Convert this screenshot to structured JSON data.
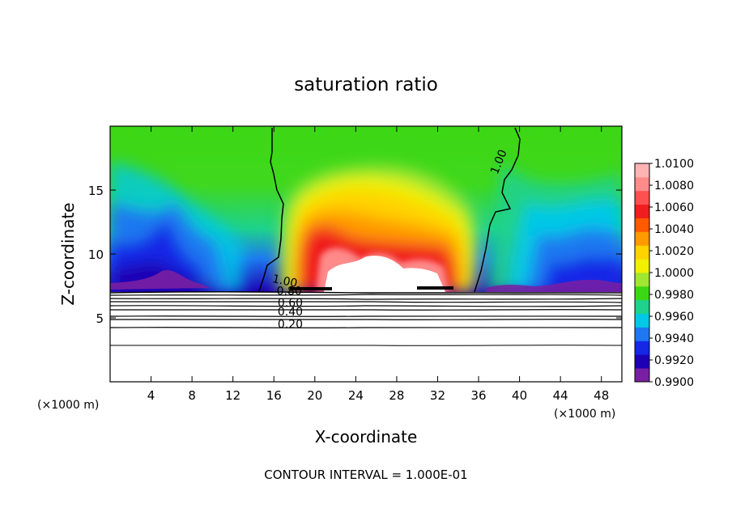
{
  "chart_data": {
    "type": "heatmap",
    "title": "saturation ratio",
    "xlabel": "X-coordinate",
    "ylabel": "Z-coordinate",
    "x_unit_left": "(×1000 m)",
    "x_unit_right": "(×1000 m)",
    "footer": "CONTOUR INTERVAL = 1.000E-01",
    "xlim": [
      0,
      50
    ],
    "ylim": [
      0,
      20
    ],
    "x_ticks": [
      4,
      8,
      12,
      16,
      20,
      24,
      28,
      32,
      36,
      40,
      44,
      48
    ],
    "y_ticks": [
      5,
      10,
      15
    ],
    "colorbar": {
      "range": [
        0.99,
        1.01
      ],
      "labels": [
        "1.0100",
        "1.0080",
        "1.0060",
        "1.0040",
        "1.0020",
        "1.0000",
        "0.9980",
        "0.9960",
        "0.9940",
        "0.9920",
        "0.9900"
      ],
      "colors": [
        "#7a1fa2",
        "#1e00b4",
        "#1428e6",
        "#1e78f0",
        "#00c8e6",
        "#1ed28c",
        "#3cd714",
        "#a0e632",
        "#f0f000",
        "#ffd200",
        "#ff9a00",
        "#ff5a00",
        "#f01e1e",
        "#ff5050",
        "#ff8a8a",
        "#ffb4b4"
      ]
    },
    "contour_labels": [
      {
        "value": "1.00",
        "x": 17.0,
        "y": 7.6
      },
      {
        "value": "0.80",
        "x": 17.5,
        "y": 6.8
      },
      {
        "value": "0.60",
        "x": 17.6,
        "y": 5.9
      },
      {
        "value": "0.40",
        "x": 17.6,
        "y": 5.2
      },
      {
        "value": "0.20",
        "x": 17.6,
        "y": 4.2
      },
      {
        "value": "1.00",
        "x": 38.3,
        "y": 17.1
      }
    ]
  }
}
